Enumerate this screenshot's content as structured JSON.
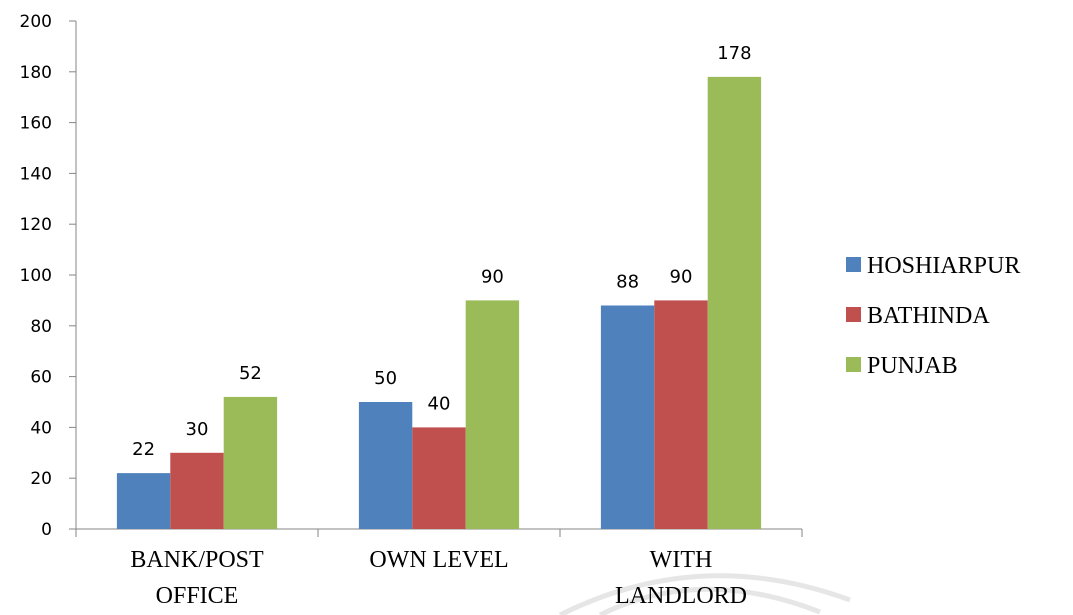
{
  "chart_data": {
    "type": "bar",
    "categories": [
      [
        "BANK/POST",
        "OFFICE"
      ],
      [
        "OWN LEVEL"
      ],
      [
        "WITH",
        "LANDLORD"
      ]
    ],
    "series": [
      {
        "name": "HOSHIARPUR",
        "values": [
          22,
          50,
          88
        ],
        "color": "#4f81bd"
      },
      {
        "name": "BATHINDA",
        "values": [
          30,
          40,
          90
        ],
        "color": "#c0504d"
      },
      {
        "name": "PUNJAB",
        "values": [
          52,
          90,
          178
        ],
        "color": "#9bbb59"
      }
    ],
    "ylim": [
      0,
      200
    ],
    "yticks": [
      0,
      20,
      40,
      60,
      80,
      100,
      120,
      140,
      160,
      180,
      200
    ],
    "legend": "right",
    "grid": false,
    "data_labels": true
  }
}
